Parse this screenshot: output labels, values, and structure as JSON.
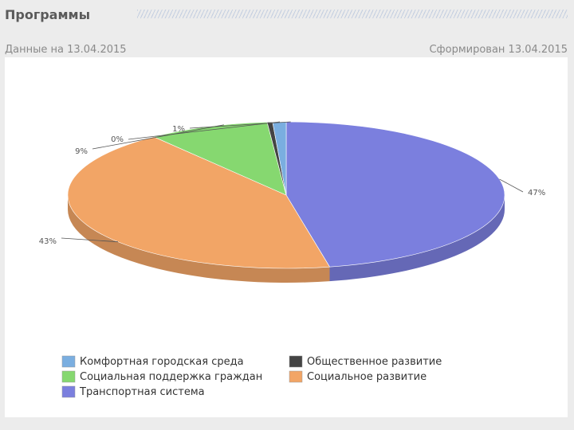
{
  "header": {
    "title": "Программы",
    "data_date": "Данные на 13.04.2015",
    "formed_date": "Сформирован 13.04.2015"
  },
  "chart_data": {
    "type": "pie",
    "slices": [
      {
        "name": "Транспортная система",
        "label": "47%",
        "value": 47,
        "color": "#7b7fde"
      },
      {
        "name": "Социальное развитие",
        "label": "43%",
        "value": 43,
        "color": "#f2a566"
      },
      {
        "name": "Социальная поддержка граждан",
        "label": "9%",
        "value": 9,
        "color": "#86d870"
      },
      {
        "name": "Общественное развитие",
        "label": "0%",
        "value": 0.4,
        "color": "#444444"
      },
      {
        "name": "Комфортная городская среда",
        "label": "1%",
        "value": 1,
        "color": "#7aaee0"
      }
    ],
    "legend": [
      {
        "name": "Комфортная городская среда",
        "color": "#7aaee0"
      },
      {
        "name": "Общественное развитие",
        "color": "#444444"
      },
      {
        "name": "Социальная поддержка граждан",
        "color": "#86d870"
      },
      {
        "name": "Социальное развитие",
        "color": "#f2a566"
      },
      {
        "name": "Транспортная система",
        "color": "#7b7fde"
      }
    ],
    "legend_placement": "bottom"
  }
}
